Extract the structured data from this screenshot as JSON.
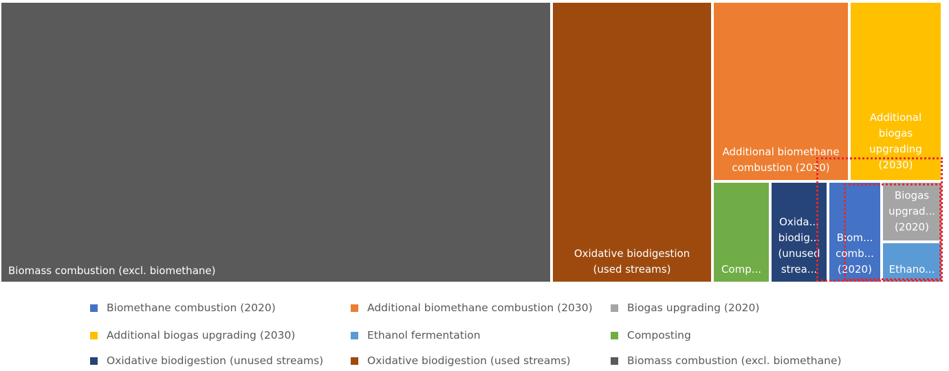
{
  "chart_data": {
    "type": "treemap",
    "legend_position": "bottom",
    "series": [
      {
        "name": "Biomass combustion (excl. biomethane)",
        "label": "Biomass combustion (excl. biomethane)",
        "value": 328,
        "color": "#5a5a5a"
      },
      {
        "name": "Oxidative biodigestion (used streams)",
        "label": "Oxidative biodigestion\n(used streams)",
        "value": 96,
        "color": "#9e4a0f"
      },
      {
        "name": "Additional biomethane combustion (2030)",
        "label": "Additional biomethane\ncombustion (2030)",
        "value": 42,
        "color": "#ed7d31"
      },
      {
        "name": "Additional biogas upgrading (2030)",
        "label": "Additional\nbiogas\nupgrading\n(2030)",
        "value": 28,
        "color": "#ffc000"
      },
      {
        "name": "Composting",
        "label": "Comp...",
        "value": 12,
        "color": "#70ad47"
      },
      {
        "name": "Oxidative biodigestion (unused streams)",
        "label": "Oxida...\nbiodig...\n(unused\nstrea...",
        "value": 12,
        "color": "#264478"
      },
      {
        "name": "Biomethane combustion (2020)",
        "label": "Biom...\ncomb...\n(2020)",
        "value": 11.5,
        "color": "#4472c4"
      },
      {
        "name": "Biogas upgrading (2020)",
        "label": "Biogas\nupgrad...\n(2020)",
        "value": 7,
        "color": "#a5a5a5"
      },
      {
        "name": "Ethanol fermentation",
        "label": "Ethano...",
        "value": 4.5,
        "color": "#5b9bd5"
      }
    ],
    "legend": [
      {
        "label": "Biomethane combustion (2020)",
        "color": "#4472c4"
      },
      {
        "label": "Additional biomethane combustion (2030)",
        "color": "#ed7d31"
      },
      {
        "label": "Biogas upgrading (2020)",
        "color": "#a5a5a5"
      },
      {
        "label": "Additional biogas upgrading (2030)",
        "color": "#ffc000"
      },
      {
        "label": "Ethanol fermentation",
        "color": "#5b9bd5"
      },
      {
        "label": "Composting",
        "color": "#70ad47"
      },
      {
        "label": "Oxidative biodigestion (unused streams)",
        "color": "#264478"
      },
      {
        "label": "Oxidative biodigestion (used streams)",
        "color": "#9e4a0f"
      },
      {
        "label": "Biomass combustion (excl. biomethane)",
        "color": "#5a5a5a"
      }
    ],
    "highlight_color": "#e8262c"
  }
}
